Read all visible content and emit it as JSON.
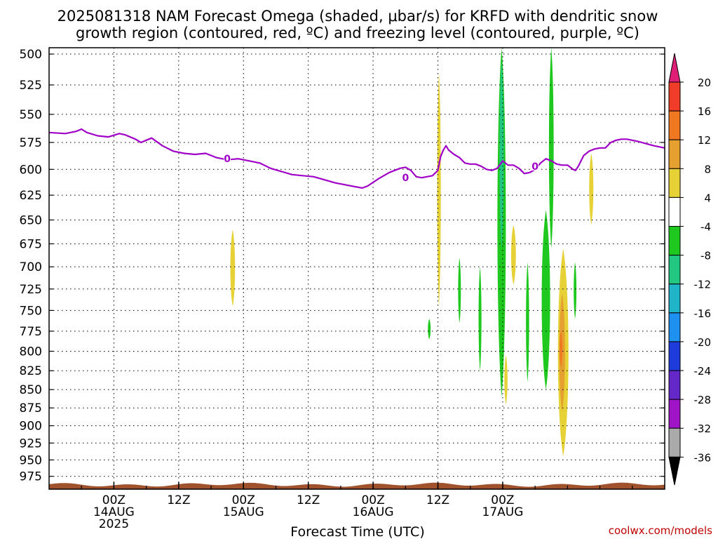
{
  "chart_data": {
    "type": "heatmap",
    "title_lines": [
      "2025081318 NAM Forecast Omega (shaded, μbar/s) for KRFD with dendritic snow",
      "growth region (contoured, red, ºC) and freezing level (contoured, purple, ºC)"
    ],
    "xlabel": "Forecast Time (UTC)",
    "credit": "coolwx.com/models",
    "y_axis": {
      "label": "",
      "scale": "log-pressure",
      "reversed": true,
      "range_hpa": [
        495,
        995
      ],
      "ticks": [
        500,
        525,
        550,
        575,
        600,
        625,
        650,
        675,
        700,
        725,
        750,
        775,
        800,
        825,
        850,
        875,
        900,
        925,
        950,
        975
      ]
    },
    "x_axis": {
      "range_forecast_hours": [
        -6,
        78
      ],
      "ticks": [
        {
          "hour": 6,
          "lines": [
            "00Z",
            "14AUG",
            "2025"
          ]
        },
        {
          "hour": 18,
          "lines": [
            "12Z"
          ]
        },
        {
          "hour": 30,
          "lines": [
            "00Z",
            "15AUG"
          ]
        },
        {
          "hour": 42,
          "lines": [
            "12Z"
          ]
        },
        {
          "hour": 54,
          "lines": [
            "00Z",
            "16AUG"
          ]
        },
        {
          "hour": 66,
          "lines": [
            "12Z"
          ]
        },
        {
          "hour": 78,
          "lines": [
            "00Z",
            "17AUG"
          ]
        }
      ]
    },
    "grid": "dotted",
    "colorbar": {
      "levels": [
        20,
        16,
        12,
        8,
        4,
        -4,
        -8,
        -12,
        -16,
        -20,
        -24,
        -28,
        -32,
        -36
      ],
      "bins": [
        {
          "range": ">20",
          "color": "#e01e78"
        },
        {
          "range": "16 to 20",
          "color": "#f03c28"
        },
        {
          "range": "12 to 16",
          "color": "#f07820"
        },
        {
          "range": "8 to 12",
          "color": "#e6a030"
        },
        {
          "range": "4 to 8",
          "color": "#e6d236"
        },
        {
          "range": "-4 to 4",
          "color": "#ffffff"
        },
        {
          "range": "-8 to -4",
          "color": "#1ec81e"
        },
        {
          "range": "-12 to -8",
          "color": "#22c882"
        },
        {
          "range": "-16 to -12",
          "color": "#20b4c8"
        },
        {
          "range": "-20 to -16",
          "color": "#1e90f0"
        },
        {
          "range": "-24 to -20",
          "color": "#1e3cdc"
        },
        {
          "range": "-28 to -24",
          "color": "#6428c8"
        },
        {
          "range": "-32 to -28",
          "color": "#a014c8"
        },
        {
          "range": "-36 to -32",
          "color": "#aaaaaa"
        },
        {
          "range": "<-36",
          "color": "#000000"
        }
      ]
    },
    "freezing_level": {
      "contour_label": "0",
      "color": "#a000c8",
      "points_hour_hpa": [
        [
          -6,
          566
        ],
        [
          -3,
          567
        ],
        [
          -1,
          565
        ],
        [
          0,
          563
        ],
        [
          1,
          566
        ],
        [
          3,
          569
        ],
        [
          5,
          570
        ],
        [
          7,
          567
        ],
        [
          8,
          568
        ],
        [
          10,
          572
        ],
        [
          11,
          575
        ],
        [
          12,
          573
        ],
        [
          13,
          571
        ],
        [
          15,
          578
        ],
        [
          17,
          583
        ],
        [
          19,
          585
        ],
        [
          21,
          586
        ],
        [
          23,
          585
        ],
        [
          25,
          589
        ],
        [
          27,
          591
        ],
        [
          29,
          590
        ],
        [
          31,
          592
        ],
        [
          33,
          594
        ],
        [
          35,
          599
        ],
        [
          37,
          602
        ],
        [
          39,
          605
        ],
        [
          41,
          606
        ],
        [
          43,
          607
        ],
        [
          45,
          610
        ],
        [
          47,
          613
        ],
        [
          49,
          615
        ],
        [
          51,
          617
        ],
        [
          52,
          618
        ],
        [
          53,
          616
        ],
        [
          55,
          609
        ],
        [
          57,
          603
        ],
        [
          59,
          599
        ],
        [
          60,
          598
        ],
        [
          61,
          601
        ],
        [
          62,
          607
        ],
        [
          63,
          608
        ],
        [
          64,
          607
        ],
        [
          65,
          606
        ],
        [
          66,
          601
        ],
        [
          66.5,
          588
        ],
        [
          67,
          582
        ],
        [
          67.5,
          578
        ],
        [
          68,
          582
        ],
        [
          69,
          586
        ],
        [
          70,
          589
        ],
        [
          71,
          594
        ],
        [
          72,
          595
        ],
        [
          73,
          595
        ],
        [
          74,
          597
        ],
        [
          75,
          600
        ],
        [
          76,
          601
        ],
        [
          77,
          599
        ],
        [
          78,
          592
        ],
        [
          79,
          596
        ],
        [
          80,
          596
        ],
        [
          81,
          599
        ],
        [
          82,
          604
        ],
        [
          83,
          603
        ],
        [
          84,
          600
        ],
        [
          85,
          594
        ],
        [
          86,
          590
        ],
        [
          87,
          592
        ],
        [
          88,
          595
        ],
        [
          89,
          596
        ],
        [
          90,
          596
        ],
        [
          91,
          600
        ],
        [
          91.5,
          601
        ],
        [
          92,
          597
        ],
        [
          93,
          587
        ],
        [
          94,
          583
        ],
        [
          95,
          581
        ],
        [
          96,
          580
        ],
        [
          97,
          580
        ],
        [
          98,
          575
        ],
        [
          99,
          573
        ],
        [
          100,
          572
        ],
        [
          101,
          572
        ],
        [
          103,
          574
        ],
        [
          106,
          578
        ],
        [
          108,
          580
        ]
      ]
    },
    "ground_fill_color": "#a0522d",
    "omega_regions": [
      {
        "value_bin": "4 to 8",
        "hour": 28,
        "width_h": 0.9,
        "p_top": 660,
        "p_bottom": 745
      },
      {
        "value_bin": "4 to 8",
        "hour": 66.2,
        "width_h": 0.7,
        "p_top": 515,
        "p_bottom": 745
      },
      {
        "value_bin": "-8 to -4",
        "hour": 70,
        "width_h": 0.5,
        "p_top": 690,
        "p_bottom": 765
      },
      {
        "value_bin": "-8 to -4",
        "hour": 64.4,
        "width_h": 0.25,
        "p_top": 760,
        "p_bottom": 785
      },
      {
        "value_bin": "-8 to -4",
        "hour": 73.8,
        "width_h": 0.55,
        "p_top": 700,
        "p_bottom": 825
      },
      {
        "value_bin": "-8 to -4",
        "hour": 77.8,
        "width_h": 1.6,
        "p_top": 495,
        "p_bottom": 860
      },
      {
        "value_bin": "-12 to -8",
        "hour": 77.8,
        "width_h": 0.8,
        "p_top": 505,
        "p_bottom": 680
      },
      {
        "value_bin": "4 to 8",
        "hour": 78.6,
        "width_h": 0.6,
        "p_top": 805,
        "p_bottom": 870
      },
      {
        "value_bin": "4 to 8",
        "hour": 80,
        "width_h": 0.9,
        "p_top": 655,
        "p_bottom": 720
      },
      {
        "value_bin": "-8 to -4",
        "hour": 82.6,
        "width_h": 0.6,
        "p_top": 695,
        "p_bottom": 840
      },
      {
        "value_bin": "-8 to -4",
        "hour": 86,
        "width_h": 1.6,
        "p_top": 640,
        "p_bottom": 850
      },
      {
        "value_bin": "-8 to -4",
        "hour": 87,
        "width_h": 0.9,
        "p_top": 495,
        "p_bottom": 680
      },
      {
        "value_bin": "4 to 8",
        "hour": 89.2,
        "width_h": 2.0,
        "p_top": 680,
        "p_bottom": 945
      },
      {
        "value_bin": "8 to 12",
        "hour": 89,
        "width_h": 1.1,
        "p_top": 730,
        "p_bottom": 880
      },
      {
        "value_bin": "12 to 16",
        "hour": 88.8,
        "width_h": 0.5,
        "p_top": 775,
        "p_bottom": 820
      },
      {
        "value_bin": "-8 to -4",
        "hour": 91.4,
        "width_h": 0.5,
        "p_top": 695,
        "p_bottom": 760
      },
      {
        "value_bin": "4 to 8",
        "hour": 94.4,
        "width_h": 0.8,
        "p_top": 585,
        "p_bottom": 655
      }
    ]
  }
}
